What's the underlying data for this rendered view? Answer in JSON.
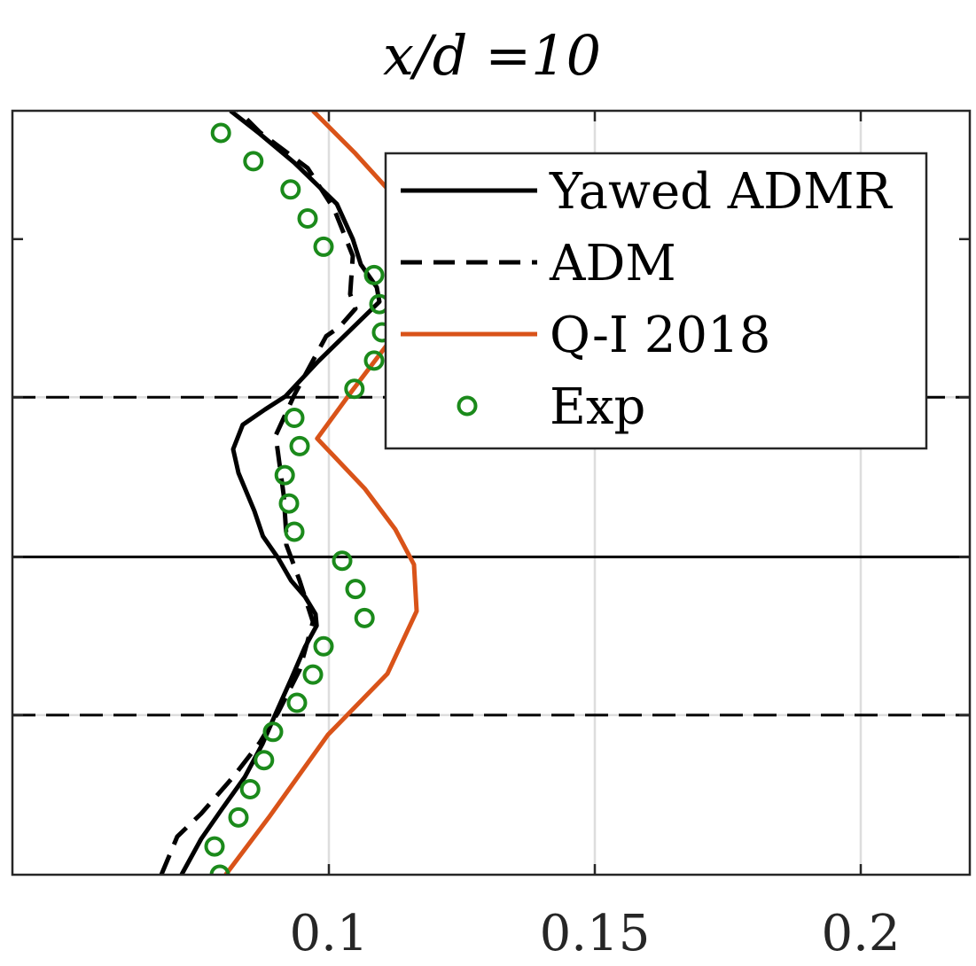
{
  "chart_data": {
    "type": "line",
    "title": "x/d =10",
    "xlabel": "",
    "ylabel": "",
    "xlim": [
      0.0405,
      0.2205
    ],
    "ylim": [
      0,
      1
    ],
    "grid": true,
    "legend_position": "top-right",
    "x_ticks": [
      0.1,
      0.15,
      0.2
    ],
    "x_tick_labels": [
      "0.1",
      "0.15",
      "0.2"
    ],
    "reference_lines": [
      {
        "y": 0.209,
        "style": "dashed",
        "color": "#000000"
      },
      {
        "y": 0.416,
        "style": "solid",
        "color": "#000000"
      },
      {
        "y": 0.625,
        "style": "dashed",
        "color": "#000000"
      }
    ],
    "series": [
      {
        "name": "Yawed ADMR",
        "style": "solid",
        "color": "#000000",
        "points": [
          [
            0.0723,
            0.0
          ],
          [
            0.076,
            0.047
          ],
          [
            0.08,
            0.087
          ],
          [
            0.0842,
            0.128
          ],
          [
            0.0875,
            0.171
          ],
          [
            0.0902,
            0.214
          ],
          [
            0.0929,
            0.256
          ],
          [
            0.0955,
            0.298
          ],
          [
            0.0977,
            0.326
          ],
          [
            0.0975,
            0.341
          ],
          [
            0.0955,
            0.364
          ],
          [
            0.0929,
            0.385
          ],
          [
            0.0905,
            0.414
          ],
          [
            0.0876,
            0.443
          ],
          [
            0.086,
            0.476
          ],
          [
            0.083,
            0.526
          ],
          [
            0.082,
            0.557
          ],
          [
            0.0838,
            0.589
          ],
          [
            0.088,
            0.609
          ],
          [
            0.0918,
            0.626
          ],
          [
            0.098,
            0.672
          ],
          [
            0.1095,
            0.75
          ],
          [
            0.109,
            0.769
          ],
          [
            0.106,
            0.799
          ],
          [
            0.1045,
            0.832
          ],
          [
            0.1015,
            0.878
          ],
          [
            0.0935,
            0.932
          ],
          [
            0.087,
            0.97
          ],
          [
            0.0815,
            1.0
          ]
        ]
      },
      {
        "name": "ADM",
        "style": "dashed",
        "color": "#000000",
        "points": [
          [
            0.0685,
            0.0
          ],
          [
            0.0715,
            0.05
          ],
          [
            0.076,
            0.08
          ],
          [
            0.082,
            0.128
          ],
          [
            0.087,
            0.173
          ],
          [
            0.0905,
            0.213
          ],
          [
            0.0945,
            0.268
          ],
          [
            0.097,
            0.331
          ],
          [
            0.0945,
            0.385
          ],
          [
            0.092,
            0.432
          ],
          [
            0.092,
            0.445
          ],
          [
            0.0915,
            0.497
          ],
          [
            0.09,
            0.575
          ],
          [
            0.0935,
            0.628
          ],
          [
            0.0995,
            0.705
          ],
          [
            0.102,
            0.717
          ],
          [
            0.105,
            0.741
          ],
          [
            0.104,
            0.76
          ],
          [
            0.1045,
            0.81
          ],
          [
            0.101,
            0.871
          ],
          [
            0.096,
            0.925
          ],
          [
            0.087,
            0.972
          ],
          [
            0.083,
            1.0
          ]
        ]
      },
      {
        "name": "Q-I 2018",
        "style": "solid",
        "color": "#D95319",
        "points": [
          [
            0.0806,
            0.0
          ],
          [
            0.0887,
            0.075
          ],
          [
            0.0998,
            0.183
          ],
          [
            0.111,
            0.263
          ],
          [
            0.1165,
            0.345
          ],
          [
            0.116,
            0.406
          ],
          [
            0.1125,
            0.452
          ],
          [
            0.1068,
            0.505
          ],
          [
            0.0978,
            0.571
          ],
          [
            0.104,
            0.63
          ],
          [
            0.1112,
            0.696
          ],
          [
            0.1165,
            0.784
          ],
          [
            0.116,
            0.837
          ],
          [
            0.111,
            0.898
          ],
          [
            0.105,
            0.944
          ],
          [
            0.097,
            1.0
          ]
        ]
      },
      {
        "name": "Exp",
        "style": "markers",
        "color": "#1B8A1B",
        "points": [
          [
            0.0795,
            0.0
          ],
          [
            0.0785,
            0.037
          ],
          [
            0.083,
            0.075
          ],
          [
            0.0852,
            0.112
          ],
          [
            0.0878,
            0.15
          ],
          [
            0.0895,
            0.187
          ],
          [
            0.094,
            0.225
          ],
          [
            0.097,
            0.262
          ],
          [
            0.099,
            0.299
          ],
          [
            0.1067,
            0.336
          ],
          [
            0.105,
            0.374
          ],
          [
            0.1025,
            0.411
          ],
          [
            0.0935,
            0.449
          ],
          [
            0.0925,
            0.486
          ],
          [
            0.0917,
            0.523
          ],
          [
            0.0945,
            0.561
          ],
          [
            0.0935,
            0.598
          ],
          [
            0.1048,
            0.636
          ],
          [
            0.1085,
            0.673
          ],
          [
            0.11,
            0.71
          ],
          [
            0.1095,
            0.747
          ],
          [
            0.1085,
            0.785
          ],
          [
            0.099,
            0.822
          ],
          [
            0.096,
            0.859
          ],
          [
            0.0928,
            0.897
          ],
          [
            0.0858,
            0.934
          ],
          [
            0.0797,
            0.971
          ]
        ]
      }
    ]
  }
}
